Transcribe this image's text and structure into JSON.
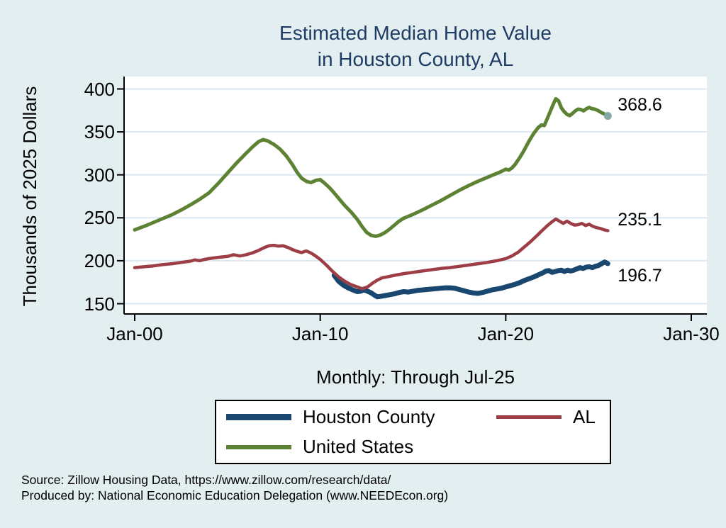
{
  "title": {
    "line1": "Estimated Median Home Value",
    "line2": "in Houston County, AL"
  },
  "y_axis": {
    "title": "Thousands of 2025 Dollars"
  },
  "x_axis": {
    "subtitle": "Monthly: Through Jul-25"
  },
  "legend": [
    {
      "label": "Houston County",
      "color": "#1a476f",
      "thickness": 9
    },
    {
      "label": "AL",
      "color": "#9d3d45",
      "thickness": 5
    },
    {
      "label": "United States",
      "color": "#5d8233",
      "thickness": 6
    }
  ],
  "source": {
    "line1": "Source: Zillow Housing Data, https://www.zillow.com/research/data/",
    "line2": "Produced by: National Economic Education Delegation (www.NEEDEcon.org)"
  },
  "chart_data": {
    "type": "line",
    "title": "Estimated Median Home Value in Houston County, AL",
    "ylabel": "Thousands of 2025 Dollars",
    "xlabel": "Monthly: Through Jul-25",
    "x_unit": "decimal_year",
    "xlim": [
      1999.4,
      2030.8
    ],
    "ylim": [
      138,
      414
    ],
    "grid": "horizontal-only",
    "background": "#e3eef1",
    "plot_background": "#ffffff",
    "gridline_color": "#dbe8f1",
    "y_ticks": [
      150,
      200,
      250,
      300,
      350,
      400
    ],
    "x_ticks": [
      {
        "label": "Jan-00",
        "year": 2000
      },
      {
        "label": "Jan-10",
        "year": 2010
      },
      {
        "label": "Jan-20",
        "year": 2020
      },
      {
        "label": "Jan-30",
        "year": 2030
      }
    ],
    "series": [
      {
        "name": "Houston County",
        "color": "#1a476f",
        "width": 7,
        "end_label": "196.7",
        "end_label_dy": 17,
        "points": [
          [
            2010.75,
            183
          ],
          [
            2011.0,
            176
          ],
          [
            2011.25,
            171.5
          ],
          [
            2011.5,
            168.5
          ],
          [
            2011.75,
            166
          ],
          [
            2012.0,
            164
          ],
          [
            2012.17,
            164.5
          ],
          [
            2012.33,
            166
          ],
          [
            2012.5,
            165
          ],
          [
            2012.75,
            162.5
          ],
          [
            2012.92,
            160
          ],
          [
            2013.08,
            158
          ],
          [
            2013.25,
            158.5
          ],
          [
            2013.5,
            159.5
          ],
          [
            2013.75,
            160.5
          ],
          [
            2014.0,
            161.5
          ],
          [
            2014.25,
            163
          ],
          [
            2014.5,
            164
          ],
          [
            2014.75,
            163.5
          ],
          [
            2015.0,
            164.5
          ],
          [
            2015.25,
            165.5
          ],
          [
            2015.5,
            166
          ],
          [
            2015.75,
            166.5
          ],
          [
            2016.0,
            167
          ],
          [
            2016.25,
            167.5
          ],
          [
            2016.5,
            168
          ],
          [
            2016.75,
            168.5
          ],
          [
            2017.0,
            168.5
          ],
          [
            2017.25,
            168
          ],
          [
            2017.5,
            166.5
          ],
          [
            2017.75,
            165
          ],
          [
            2018.0,
            163.5
          ],
          [
            2018.25,
            162.5
          ],
          [
            2018.5,
            162
          ],
          [
            2018.75,
            163
          ],
          [
            2019.0,
            164.5
          ],
          [
            2019.25,
            166
          ],
          [
            2019.5,
            167
          ],
          [
            2019.75,
            168
          ],
          [
            2020.0,
            169.5
          ],
          [
            2020.25,
            171
          ],
          [
            2020.5,
            172.5
          ],
          [
            2020.75,
            174.5
          ],
          [
            2021.0,
            177
          ],
          [
            2021.25,
            179
          ],
          [
            2021.5,
            181
          ],
          [
            2021.75,
            183.5
          ],
          [
            2022.0,
            186
          ],
          [
            2022.17,
            188
          ],
          [
            2022.33,
            188.5
          ],
          [
            2022.5,
            186.5
          ],
          [
            2022.67,
            187.5
          ],
          [
            2022.83,
            188.5
          ],
          [
            2023.0,
            189
          ],
          [
            2023.17,
            187.5
          ],
          [
            2023.33,
            189
          ],
          [
            2023.5,
            188
          ],
          [
            2023.67,
            189
          ],
          [
            2023.83,
            190.5
          ],
          [
            2024.0,
            192
          ],
          [
            2024.17,
            191
          ],
          [
            2024.33,
            192.5
          ],
          [
            2024.5,
            193
          ],
          [
            2024.67,
            192
          ],
          [
            2024.83,
            193.5
          ],
          [
            2025.0,
            194.5
          ],
          [
            2025.17,
            196.5
          ],
          [
            2025.33,
            198.5
          ],
          [
            2025.5,
            196.7
          ]
        ]
      },
      {
        "name": "AL",
        "color": "#9d3d45",
        "width": 4.5,
        "end_label": "235.1",
        "end_label_dy": -15,
        "points": [
          [
            2000.0,
            192
          ],
          [
            2000.5,
            193
          ],
          [
            2001.0,
            194
          ],
          [
            2001.5,
            195.5
          ],
          [
            2002.0,
            196.5
          ],
          [
            2002.5,
            198
          ],
          [
            2003.0,
            199.5
          ],
          [
            2003.25,
            201
          ],
          [
            2003.5,
            200
          ],
          [
            2003.75,
            201.5
          ],
          [
            2004.0,
            202.5
          ],
          [
            2004.5,
            204
          ],
          [
            2005.0,
            205
          ],
          [
            2005.33,
            207
          ],
          [
            2005.67,
            205.5
          ],
          [
            2006.0,
            207
          ],
          [
            2006.33,
            209
          ],
          [
            2006.67,
            212
          ],
          [
            2007.0,
            215.5
          ],
          [
            2007.25,
            217.5
          ],
          [
            2007.5,
            218
          ],
          [
            2007.75,
            217
          ],
          [
            2008.0,
            217.5
          ],
          [
            2008.25,
            215.5
          ],
          [
            2008.5,
            213
          ],
          [
            2008.75,
            211
          ],
          [
            2009.0,
            209.5
          ],
          [
            2009.25,
            211.5
          ],
          [
            2009.5,
            209
          ],
          [
            2009.75,
            205.5
          ],
          [
            2010.0,
            201.5
          ],
          [
            2010.33,
            195
          ],
          [
            2010.67,
            187.5
          ],
          [
            2011.0,
            181
          ],
          [
            2011.33,
            176
          ],
          [
            2011.67,
            172
          ],
          [
            2012.0,
            169.5
          ],
          [
            2012.25,
            167.5
          ],
          [
            2012.42,
            168.5
          ],
          [
            2012.58,
            170
          ],
          [
            2012.83,
            174
          ],
          [
            2013.08,
            177.5
          ],
          [
            2013.33,
            180
          ],
          [
            2013.67,
            181.5
          ],
          [
            2014.0,
            183
          ],
          [
            2014.5,
            185
          ],
          [
            2015.0,
            186.5
          ],
          [
            2015.5,
            188
          ],
          [
            2016.0,
            189.5
          ],
          [
            2016.5,
            191
          ],
          [
            2017.0,
            192
          ],
          [
            2017.5,
            193.5
          ],
          [
            2018.0,
            195
          ],
          [
            2018.5,
            196.5
          ],
          [
            2019.0,
            198
          ],
          [
            2019.5,
            200
          ],
          [
            2020.0,
            202.5
          ],
          [
            2020.33,
            205.5
          ],
          [
            2020.67,
            210
          ],
          [
            2021.0,
            216
          ],
          [
            2021.33,
            222
          ],
          [
            2021.67,
            229
          ],
          [
            2022.0,
            236
          ],
          [
            2022.25,
            241
          ],
          [
            2022.5,
            245.5
          ],
          [
            2022.7,
            248.5
          ],
          [
            2022.9,
            246
          ],
          [
            2023.1,
            243.5
          ],
          [
            2023.3,
            246
          ],
          [
            2023.5,
            243.5
          ],
          [
            2023.7,
            241.5
          ],
          [
            2023.9,
            242
          ],
          [
            2024.1,
            243.5
          ],
          [
            2024.3,
            241
          ],
          [
            2024.5,
            242.5
          ],
          [
            2024.7,
            240
          ],
          [
            2024.9,
            238.5
          ],
          [
            2025.1,
            237.5
          ],
          [
            2025.3,
            236
          ],
          [
            2025.5,
            235.1
          ]
        ]
      },
      {
        "name": "United States",
        "color": "#5d8233",
        "width": 5,
        "end_label": "368.6",
        "end_label_dy": -16,
        "end_marker_color": "#85a8a3",
        "points": [
          [
            2000.0,
            236
          ],
          [
            2000.5,
            240
          ],
          [
            2001.0,
            244.5
          ],
          [
            2001.5,
            249
          ],
          [
            2002.0,
            253.5
          ],
          [
            2002.5,
            259
          ],
          [
            2003.0,
            265
          ],
          [
            2003.5,
            271.5
          ],
          [
            2004.0,
            279
          ],
          [
            2004.5,
            290
          ],
          [
            2005.0,
            302
          ],
          [
            2005.5,
            314
          ],
          [
            2006.0,
            325
          ],
          [
            2006.33,
            332
          ],
          [
            2006.67,
            338.5
          ],
          [
            2006.92,
            341
          ],
          [
            2007.17,
            339.5
          ],
          [
            2007.5,
            335.5
          ],
          [
            2007.83,
            330
          ],
          [
            2008.17,
            322
          ],
          [
            2008.5,
            312
          ],
          [
            2008.75,
            303
          ],
          [
            2009.0,
            296
          ],
          [
            2009.25,
            292.5
          ],
          [
            2009.5,
            291
          ],
          [
            2009.75,
            293.5
          ],
          [
            2010.0,
            294.5
          ],
          [
            2010.25,
            290
          ],
          [
            2010.5,
            285
          ],
          [
            2010.75,
            279
          ],
          [
            2011.0,
            272.5
          ],
          [
            2011.33,
            264
          ],
          [
            2011.67,
            256.5
          ],
          [
            2012.0,
            248
          ],
          [
            2012.25,
            240
          ],
          [
            2012.5,
            233
          ],
          [
            2012.75,
            229.5
          ],
          [
            2013.0,
            228.5
          ],
          [
            2013.25,
            230
          ],
          [
            2013.5,
            233
          ],
          [
            2013.75,
            237
          ],
          [
            2014.0,
            241.5
          ],
          [
            2014.25,
            246
          ],
          [
            2014.5,
            249.5
          ],
          [
            2015.0,
            254
          ],
          [
            2015.5,
            259
          ],
          [
            2016.0,
            264.5
          ],
          [
            2016.5,
            270
          ],
          [
            2017.0,
            276
          ],
          [
            2017.5,
            282
          ],
          [
            2018.0,
            287.5
          ],
          [
            2018.5,
            292.5
          ],
          [
            2019.0,
            297
          ],
          [
            2019.33,
            300
          ],
          [
            2019.67,
            303
          ],
          [
            2020.0,
            306.5
          ],
          [
            2020.17,
            305.5
          ],
          [
            2020.33,
            308
          ],
          [
            2020.5,
            312
          ],
          [
            2020.75,
            320
          ],
          [
            2021.0,
            329
          ],
          [
            2021.25,
            339
          ],
          [
            2021.5,
            348
          ],
          [
            2021.75,
            355
          ],
          [
            2021.92,
            358
          ],
          [
            2022.08,
            357.5
          ],
          [
            2022.25,
            366
          ],
          [
            2022.42,
            375
          ],
          [
            2022.58,
            383
          ],
          [
            2022.7,
            388.5
          ],
          [
            2022.85,
            386
          ],
          [
            2023.0,
            378
          ],
          [
            2023.15,
            373.5
          ],
          [
            2023.3,
            370.5
          ],
          [
            2023.45,
            369
          ],
          [
            2023.6,
            371.5
          ],
          [
            2023.75,
            374.5
          ],
          [
            2023.9,
            376.5
          ],
          [
            2024.05,
            376
          ],
          [
            2024.2,
            374.5
          ],
          [
            2024.35,
            377
          ],
          [
            2024.5,
            378.5
          ],
          [
            2024.65,
            377
          ],
          [
            2024.8,
            376.5
          ],
          [
            2025.0,
            374.5
          ],
          [
            2025.15,
            372.5
          ],
          [
            2025.3,
            371
          ],
          [
            2025.5,
            368.6
          ]
        ]
      }
    ],
    "legend_position": "bottom",
    "end_labels": [
      "196.7",
      "235.1",
      "368.6"
    ]
  }
}
